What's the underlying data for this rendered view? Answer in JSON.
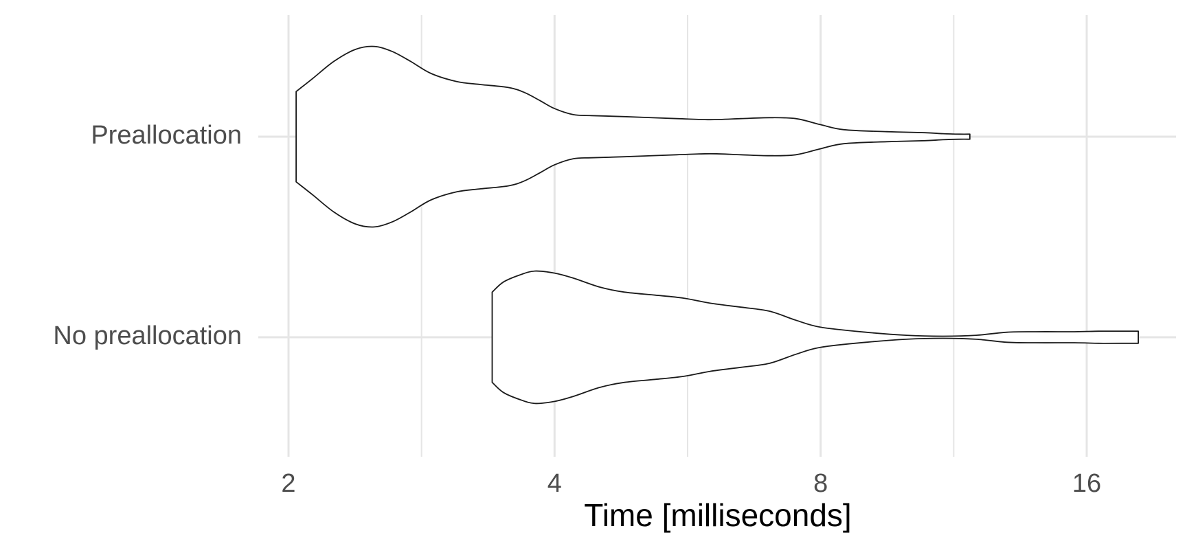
{
  "chart_data": {
    "type": "violin",
    "xlabel": "Time [milliseconds]",
    "ylabel": "",
    "x_scale": "log2",
    "xlim": [
      1.9,
      19.5
    ],
    "x_ticks": [
      2,
      4,
      8,
      16
    ],
    "x_tick_labels": [
      "2",
      "4",
      "8",
      "16"
    ],
    "categories": [
      "Preallocation",
      "No preallocation"
    ],
    "grid": true,
    "colors": {
      "outline": "#1a1a1a",
      "fill": "#ffffff",
      "grid": "#e5e5e5"
    },
    "series": [
      {
        "name": "Preallocation",
        "min": 2.04,
        "max": 11.8,
        "density_profile": [
          [
            2.04,
            0.45
          ],
          [
            2.13,
            0.58
          ],
          [
            2.25,
            0.75
          ],
          [
            2.38,
            0.87
          ],
          [
            2.5,
            0.9
          ],
          [
            2.62,
            0.85
          ],
          [
            2.75,
            0.75
          ],
          [
            2.9,
            0.63
          ],
          [
            3.1,
            0.55
          ],
          [
            3.3,
            0.52
          ],
          [
            3.55,
            0.49
          ],
          [
            3.7,
            0.44
          ],
          [
            3.85,
            0.36
          ],
          [
            4.0,
            0.28
          ],
          [
            4.2,
            0.22
          ],
          [
            4.4,
            0.21
          ],
          [
            4.8,
            0.2
          ],
          [
            5.5,
            0.18
          ],
          [
            6.0,
            0.17
          ],
          [
            6.5,
            0.18
          ],
          [
            7.0,
            0.19
          ],
          [
            7.5,
            0.18
          ],
          [
            8.0,
            0.12
          ],
          [
            8.5,
            0.07
          ],
          [
            9.5,
            0.05
          ],
          [
            10.5,
            0.04
          ],
          [
            11.0,
            0.03
          ],
          [
            11.5,
            0.025
          ],
          [
            11.8,
            0.025
          ]
        ]
      },
      {
        "name": "No preallocation",
        "min": 3.4,
        "max": 18.3,
        "density_profile": [
          [
            3.4,
            0.45
          ],
          [
            3.5,
            0.55
          ],
          [
            3.65,
            0.62
          ],
          [
            3.8,
            0.66
          ],
          [
            4.0,
            0.64
          ],
          [
            4.2,
            0.59
          ],
          [
            4.5,
            0.5
          ],
          [
            4.8,
            0.45
          ],
          [
            5.2,
            0.42
          ],
          [
            5.6,
            0.39
          ],
          [
            6.0,
            0.34
          ],
          [
            6.5,
            0.3
          ],
          [
            7.0,
            0.26
          ],
          [
            7.5,
            0.17
          ],
          [
            8.0,
            0.1
          ],
          [
            9.0,
            0.05
          ],
          [
            10.0,
            0.02
          ],
          [
            11.0,
            0.01
          ],
          [
            12.0,
            0.02
          ],
          [
            13.0,
            0.05
          ],
          [
            14.0,
            0.055
          ],
          [
            15.5,
            0.055
          ],
          [
            16.5,
            0.06
          ],
          [
            17.5,
            0.06
          ],
          [
            18.3,
            0.06
          ]
        ]
      }
    ]
  }
}
